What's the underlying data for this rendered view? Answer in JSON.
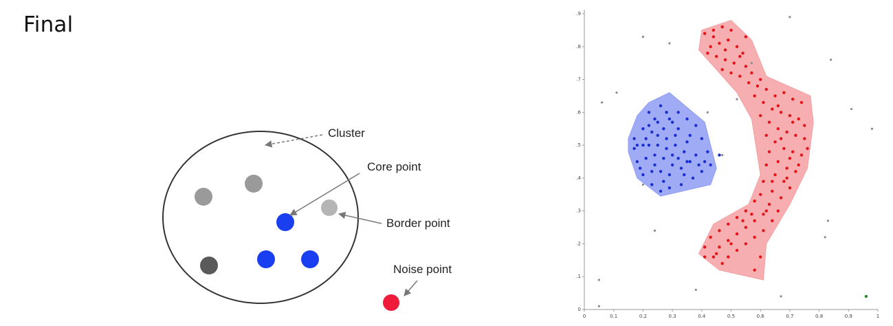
{
  "title": "Final",
  "diagram": {
    "labels": {
      "cluster": "Cluster",
      "core": "Core point",
      "border": "Border point",
      "noise": "Noise point"
    },
    "colors": {
      "core": "#1a3ff0",
      "border": "#b5b5b5",
      "noise": "#ee1b3a",
      "other_light": "#9a9a9a",
      "other_dark": "#5a5a5a"
    }
  },
  "chart_data": {
    "type": "scatter",
    "xlim": [
      0,
      1
    ],
    "ylim": [
      0,
      0.9
    ],
    "xticks": [
      "0",
      "0.1",
      "0.2",
      "0.3",
      "0.4",
      "0.5",
      "0.6",
      "0.7",
      "0.8",
      "0.9",
      "1"
    ],
    "yticks": [
      "0",
      ".1",
      ".2",
      ".3",
      ".4",
      ".5",
      ".6",
      ".7",
      ".8",
      ".9"
    ],
    "clusters": [
      {
        "color": "#1a2fcf",
        "fill": "#8f9cf3",
        "hull": [
          [
            0.15,
            0.52
          ],
          [
            0.18,
            0.59
          ],
          [
            0.22,
            0.63
          ],
          [
            0.29,
            0.66
          ],
          [
            0.41,
            0.57
          ],
          [
            0.45,
            0.43
          ],
          [
            0.43,
            0.38
          ],
          [
            0.26,
            0.345
          ],
          [
            0.18,
            0.4
          ],
          [
            0.15,
            0.48
          ]
        ],
        "points": [
          [
            0.17,
            0.52
          ],
          [
            0.2,
            0.55
          ],
          [
            0.22,
            0.6
          ],
          [
            0.24,
            0.58
          ],
          [
            0.26,
            0.62
          ],
          [
            0.28,
            0.6
          ],
          [
            0.3,
            0.57
          ],
          [
            0.32,
            0.55
          ],
          [
            0.35,
            0.58
          ],
          [
            0.38,
            0.56
          ],
          [
            0.4,
            0.52
          ],
          [
            0.42,
            0.48
          ],
          [
            0.43,
            0.44
          ],
          [
            0.4,
            0.42
          ],
          [
            0.37,
            0.4
          ],
          [
            0.33,
            0.38
          ],
          [
            0.29,
            0.37
          ],
          [
            0.26,
            0.36
          ],
          [
            0.23,
            0.38
          ],
          [
            0.2,
            0.41
          ],
          [
            0.18,
            0.45
          ],
          [
            0.17,
            0.49
          ],
          [
            0.22,
            0.5
          ],
          [
            0.25,
            0.53
          ],
          [
            0.28,
            0.52
          ],
          [
            0.31,
            0.5
          ],
          [
            0.34,
            0.48
          ],
          [
            0.36,
            0.45
          ],
          [
            0.33,
            0.43
          ],
          [
            0.3,
            0.44
          ],
          [
            0.27,
            0.46
          ],
          [
            0.24,
            0.47
          ],
          [
            0.21,
            0.46
          ],
          [
            0.26,
            0.42
          ],
          [
            0.29,
            0.41
          ],
          [
            0.32,
            0.46
          ],
          [
            0.35,
            0.51
          ],
          [
            0.31,
            0.53
          ],
          [
            0.27,
            0.55
          ],
          [
            0.23,
            0.54
          ],
          [
            0.2,
            0.5
          ],
          [
            0.19,
            0.43
          ],
          [
            0.24,
            0.44
          ],
          [
            0.38,
            0.47
          ],
          [
            0.34,
            0.41
          ],
          [
            0.28,
            0.49
          ],
          [
            0.25,
            0.5
          ],
          [
            0.3,
            0.47
          ],
          [
            0.22,
            0.56
          ],
          [
            0.36,
            0.53
          ],
          [
            0.39,
            0.44
          ],
          [
            0.27,
            0.39
          ],
          [
            0.25,
            0.57
          ],
          [
            0.29,
            0.58
          ],
          [
            0.32,
            0.6
          ],
          [
            0.21,
            0.52
          ],
          [
            0.35,
            0.45
          ],
          [
            0.41,
            0.45
          ],
          [
            0.18,
            0.5
          ],
          [
            0.23,
            0.42
          ],
          [
            0.46,
            0.47
          ]
        ]
      },
      {
        "color": "#e3151b",
        "fill": "#f4a0a2",
        "hull": [
          [
            0.4,
            0.85
          ],
          [
            0.5,
            0.88
          ],
          [
            0.57,
            0.82
          ],
          [
            0.62,
            0.71
          ],
          [
            0.77,
            0.65
          ],
          [
            0.78,
            0.57
          ],
          [
            0.76,
            0.43
          ],
          [
            0.7,
            0.32
          ],
          [
            0.62,
            0.2
          ],
          [
            0.61,
            0.09
          ],
          [
            0.46,
            0.12
          ],
          [
            0.39,
            0.17
          ],
          [
            0.44,
            0.26
          ],
          [
            0.56,
            0.32
          ],
          [
            0.6,
            0.41
          ],
          [
            0.57,
            0.58
          ],
          [
            0.52,
            0.66
          ],
          [
            0.45,
            0.73
          ],
          [
            0.39,
            0.79
          ]
        ],
        "points": [
          [
            0.41,
            0.84
          ],
          [
            0.44,
            0.85
          ],
          [
            0.47,
            0.86
          ],
          [
            0.5,
            0.85
          ],
          [
            0.43,
            0.8
          ],
          [
            0.46,
            0.81
          ],
          [
            0.49,
            0.82
          ],
          [
            0.52,
            0.8
          ],
          [
            0.54,
            0.78
          ],
          [
            0.45,
            0.77
          ],
          [
            0.48,
            0.76
          ],
          [
            0.51,
            0.75
          ],
          [
            0.55,
            0.74
          ],
          [
            0.57,
            0.72
          ],
          [
            0.53,
            0.71
          ],
          [
            0.5,
            0.72
          ],
          [
            0.47,
            0.73
          ],
          [
            0.56,
            0.69
          ],
          [
            0.59,
            0.68
          ],
          [
            0.62,
            0.67
          ],
          [
            0.65,
            0.65
          ],
          [
            0.68,
            0.66
          ],
          [
            0.71,
            0.64
          ],
          [
            0.74,
            0.63
          ],
          [
            0.58,
            0.65
          ],
          [
            0.61,
            0.63
          ],
          [
            0.64,
            0.61
          ],
          [
            0.67,
            0.6
          ],
          [
            0.7,
            0.59
          ],
          [
            0.73,
            0.58
          ],
          [
            0.6,
            0.59
          ],
          [
            0.63,
            0.57
          ],
          [
            0.66,
            0.55
          ],
          [
            0.69,
            0.54
          ],
          [
            0.72,
            0.53
          ],
          [
            0.75,
            0.52
          ],
          [
            0.62,
            0.53
          ],
          [
            0.65,
            0.51
          ],
          [
            0.68,
            0.49
          ],
          [
            0.71,
            0.48
          ],
          [
            0.74,
            0.47
          ],
          [
            0.63,
            0.48
          ],
          [
            0.66,
            0.45
          ],
          [
            0.69,
            0.43
          ],
          [
            0.72,
            0.42
          ],
          [
            0.62,
            0.44
          ],
          [
            0.65,
            0.41
          ],
          [
            0.68,
            0.39
          ],
          [
            0.7,
            0.37
          ],
          [
            0.61,
            0.39
          ],
          [
            0.64,
            0.36
          ],
          [
            0.67,
            0.34
          ],
          [
            0.6,
            0.35
          ],
          [
            0.63,
            0.32
          ],
          [
            0.66,
            0.3
          ],
          [
            0.58,
            0.33
          ],
          [
            0.61,
            0.29
          ],
          [
            0.64,
            0.27
          ],
          [
            0.55,
            0.3
          ],
          [
            0.58,
            0.27
          ],
          [
            0.61,
            0.24
          ],
          [
            0.52,
            0.28
          ],
          [
            0.55,
            0.25
          ],
          [
            0.58,
            0.22
          ],
          [
            0.49,
            0.26
          ],
          [
            0.52,
            0.23
          ],
          [
            0.55,
            0.2
          ],
          [
            0.46,
            0.24
          ],
          [
            0.49,
            0.21
          ],
          [
            0.52,
            0.18
          ],
          [
            0.43,
            0.22
          ],
          [
            0.46,
            0.19
          ],
          [
            0.49,
            0.16
          ],
          [
            0.41,
            0.19
          ],
          [
            0.44,
            0.16
          ],
          [
            0.47,
            0.14
          ],
          [
            0.41,
            0.16
          ],
          [
            0.58,
            0.12
          ],
          [
            0.6,
            0.16
          ],
          [
            0.75,
            0.56
          ],
          [
            0.76,
            0.49
          ],
          [
            0.73,
            0.44
          ],
          [
            0.55,
            0.83
          ],
          [
            0.48,
            0.79
          ],
          [
            0.53,
            0.77
          ],
          [
            0.44,
            0.83
          ],
          [
            0.42,
            0.78
          ],
          [
            0.6,
            0.7
          ],
          [
            0.66,
            0.62
          ],
          [
            0.71,
            0.57
          ],
          [
            0.67,
            0.52
          ],
          [
            0.7,
            0.46
          ],
          [
            0.64,
            0.39
          ],
          [
            0.69,
            0.4
          ],
          [
            0.57,
            0.29
          ],
          [
            0.5,
            0.2
          ],
          [
            0.45,
            0.17
          ],
          [
            0.54,
            0.27
          ],
          [
            0.62,
            0.3
          ]
        ]
      }
    ],
    "noise": [
      [
        0.06,
        0.63
      ],
      [
        0.11,
        0.66
      ],
      [
        0.2,
        0.83
      ],
      [
        0.29,
        0.81
      ],
      [
        0.57,
        0.75
      ],
      [
        0.7,
        0.89
      ],
      [
        0.84,
        0.76
      ],
      [
        0.91,
        0.61
      ],
      [
        0.98,
        0.55
      ],
      [
        0.47,
        0.47
      ],
      [
        0.2,
        0.38
      ],
      [
        0.24,
        0.24
      ],
      [
        0.38,
        0.06
      ],
      [
        0.67,
        0.04
      ],
      [
        0.05,
        0.09
      ],
      [
        0.05,
        0.01
      ],
      [
        0.83,
        0.27
      ],
      [
        0.82,
        0.22
      ],
      [
        0.42,
        0.6
      ],
      [
        0.52,
        0.64
      ]
    ],
    "special_points": [
      [
        0.96,
        0.04
      ]
    ]
  }
}
